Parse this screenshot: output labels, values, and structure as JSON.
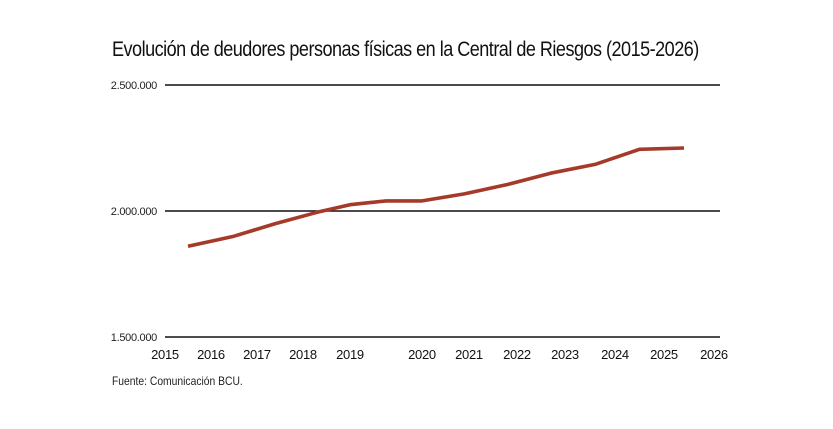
{
  "chart_data": {
    "type": "line",
    "title": "Evolución de deudores personas físicas en la Central de Riesgos (2015-2026)",
    "xlabel": "",
    "ylabel": "",
    "source": "Fuente: Comunicación BCU.",
    "x_tick_labels": [
      "2015",
      "2016",
      "2017",
      "2018",
      "2019",
      "2020",
      "2021",
      "2022",
      "2023",
      "2024",
      "2025",
      "2026"
    ],
    "y_tick_labels": [
      "2.500.000",
      "2.000.000",
      "1.500.000"
    ],
    "y_ticks": [
      2500000,
      2000000,
      1500000
    ],
    "ylim": [
      1500000,
      2500000
    ],
    "grid": "horizontal",
    "line_color": "#a63a28",
    "series": [
      {
        "x": [
          2015.5,
          2016.5,
          2017.4,
          2018.3,
          2019.0,
          2019.5,
          2020.0,
          2020.9,
          2021.8,
          2022.7,
          2023.6,
          2024.5,
          2025.4
        ],
        "values": [
          1860000,
          1900000,
          1950000,
          1995000,
          2025000,
          2040000,
          2040000,
          2068000,
          2105000,
          2150000,
          2185000,
          2245000,
          2250000
        ]
      }
    ]
  }
}
